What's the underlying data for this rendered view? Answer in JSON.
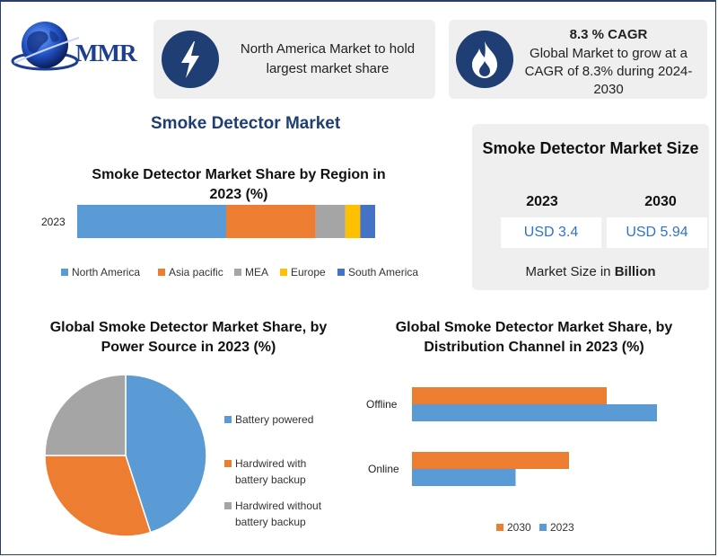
{
  "header": {
    "logo_text": "MMR",
    "card1_text": "North America Market to hold largest market share",
    "card2_title": "8.3 % CAGR",
    "card2_text": "Global Market to grow at a CAGR of 8.3% during 2024-2030"
  },
  "page_title": "Smoke Detector Market",
  "market_size": {
    "title": "Smoke Detector Market Size",
    "years": [
      "2023",
      "2030"
    ],
    "values": [
      "USD 3.4",
      "USD 5.94"
    ],
    "note_prefix": "Market Size in ",
    "note_unit": "Billion"
  },
  "chart_data": [
    {
      "type": "bar",
      "orientation": "horizontal-stacked",
      "title": "Smoke Detector Market Share by Region in 2023 (%)",
      "categories": [
        "2023"
      ],
      "series": [
        {
          "name": "North America",
          "values": [
            50
          ],
          "color": "#5b9bd5"
        },
        {
          "name": "Asia pacific",
          "values": [
            30
          ],
          "color": "#ed7d31"
        },
        {
          "name": "MEA",
          "values": [
            10
          ],
          "color": "#a5a5a5"
        },
        {
          "name": "Europe",
          "values": [
            5
          ],
          "color": "#ffc000"
        },
        {
          "name": "South America",
          "values": [
            5
          ],
          "color": "#4472c4"
        }
      ],
      "legend": "bottom"
    },
    {
      "type": "pie",
      "title": "Global Smoke Detector Market Share, by Power Source in 2023 (%)",
      "slices": [
        {
          "name": "Battery powered",
          "value": 45,
          "color": "#5b9bd5"
        },
        {
          "name": "Hardwired with battery backup",
          "value": 30,
          "color": "#ed7d31"
        },
        {
          "name": "Hardwired without battery backup",
          "value": 25,
          "color": "#a5a5a5"
        }
      ],
      "legend": "right"
    },
    {
      "type": "bar",
      "orientation": "horizontal",
      "title": "Global Smoke Detector Market Share, by Distribution Channel in 2023 (%)",
      "categories": [
        "Offline",
        "Online"
      ],
      "series": [
        {
          "name": "2030",
          "values": [
            62,
            50
          ],
          "color": "#ed7d31"
        },
        {
          "name": "2023",
          "values": [
            78,
            33
          ],
          "color": "#5b9bd5"
        }
      ],
      "xlim": [
        0,
        80
      ],
      "legend": "bottom"
    }
  ]
}
